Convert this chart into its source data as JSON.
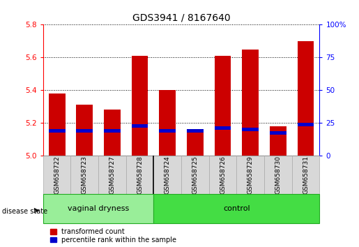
{
  "title": "GDS3941 / 8167640",
  "samples": [
    "GSM658722",
    "GSM658723",
    "GSM658727",
    "GSM658728",
    "GSM658724",
    "GSM658725",
    "GSM658726",
    "GSM658729",
    "GSM658730",
    "GSM658731"
  ],
  "red_values": [
    5.38,
    5.31,
    5.28,
    5.61,
    5.4,
    5.15,
    5.61,
    5.65,
    5.18,
    5.7
  ],
  "blue_values": [
    5.15,
    5.15,
    5.15,
    5.18,
    5.15,
    5.15,
    5.17,
    5.16,
    5.14,
    5.19
  ],
  "ylim_left": [
    5.0,
    5.8
  ],
  "ylim_right": [
    0,
    100
  ],
  "yticks_left": [
    5.0,
    5.2,
    5.4,
    5.6,
    5.8
  ],
  "yticks_right": [
    0,
    25,
    50,
    75,
    100
  ],
  "group1_label": "vaginal dryness",
  "group2_label": "control",
  "group1_count": 4,
  "group2_count": 6,
  "disease_state_label": "disease state",
  "legend_red": "transformed count",
  "legend_blue": "percentile rank within the sample",
  "bar_width": 0.6,
  "red_color": "#cc0000",
  "blue_color": "#0000cc",
  "tick_label_bg": "#d8d8d8",
  "group1_color": "#99ee99",
  "group2_color": "#44dd44",
  "group_edge_color": "#22aa22",
  "base_value": 5.0,
  "title_fontsize": 10,
  "tick_fontsize": 7.5,
  "label_fontsize": 6.5,
  "group_fontsize": 8,
  "legend_fontsize": 7,
  "blue_bar_height": 0.022
}
